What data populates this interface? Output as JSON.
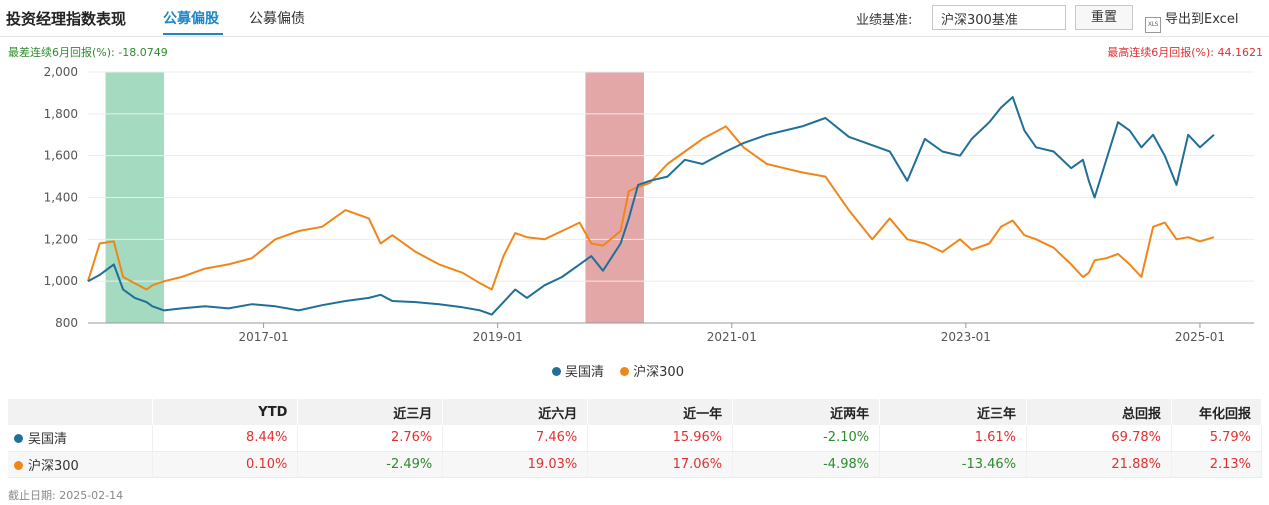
{
  "header": {
    "title": "投资经理指数表现",
    "tabs": [
      {
        "label": "公募偏股"
      },
      {
        "label": "公募偏债"
      }
    ],
    "benchmark_label": "业绩基准:",
    "benchmark_value": "沪深300基准",
    "reset_label": "重置",
    "export_label": "导出到Excel",
    "export_icon": "XLS"
  },
  "stats": {
    "worst_6m": "最差连续6月回报(%): -18.0749",
    "best_6m": "最高连续6月回报(%): 44.1621"
  },
  "colors": {
    "manager": "#1f6f99",
    "benchmark": "#f0861a",
    "worst_band": "#9fd9bd",
    "best_band": "#e3a2a2",
    "positive": "#e03030",
    "negative": "#2e8b2e"
  },
  "chart_data": {
    "type": "line",
    "ylim": [
      800,
      2000
    ],
    "y_ticks": [
      800,
      1000,
      1200,
      1400,
      1600,
      1800,
      2000
    ],
    "y_tick_labels": [
      "800",
      "1,000",
      "1,200",
      "1,400",
      "1,600",
      "1,800",
      "2,000"
    ],
    "x_ticks": [
      2017.0,
      2019.0,
      2021.0,
      2023.0,
      2025.0
    ],
    "x_tick_labels": [
      "2017-01",
      "2019-01",
      "2021-01",
      "2023-01",
      "2025-01"
    ],
    "xlim": [
      2015.5,
      2025.12
    ],
    "bands": [
      {
        "from": 2015.65,
        "to": 2016.15,
        "kind": "worst"
      },
      {
        "from": 2019.75,
        "to": 2020.25,
        "kind": "best"
      }
    ],
    "series": [
      {
        "name": "吴国清",
        "x": [
          2015.5,
          2015.6,
          2015.72,
          2015.8,
          2015.9,
          2016.0,
          2016.05,
          2016.15,
          2016.3,
          2016.5,
          2016.7,
          2016.9,
          2017.1,
          2017.3,
          2017.5,
          2017.7,
          2017.9,
          2018.0,
          2018.1,
          2018.3,
          2018.5,
          2018.7,
          2018.85,
          2018.95,
          2019.05,
          2019.15,
          2019.25,
          2019.4,
          2019.55,
          2019.7,
          2019.8,
          2019.9,
          2020.05,
          2020.12,
          2020.2,
          2020.3,
          2020.45,
          2020.6,
          2020.75,
          2020.95,
          2021.1,
          2021.3,
          2021.45,
          2021.6,
          2021.8,
          2022.0,
          2022.2,
          2022.35,
          2022.5,
          2022.65,
          2022.8,
          2022.95,
          2023.05,
          2023.2,
          2023.3,
          2023.4,
          2023.5,
          2023.6,
          2023.75,
          2023.9,
          2024.0,
          2024.05,
          2024.1,
          2024.2,
          2024.3,
          2024.4,
          2024.5,
          2024.6,
          2024.7,
          2024.8,
          2024.9,
          2025.0,
          2025.12
        ],
        "values": [
          1000,
          1030,
          1080,
          960,
          920,
          900,
          880,
          860,
          870,
          880,
          870,
          890,
          880,
          860,
          885,
          905,
          920,
          935,
          905,
          900,
          890,
          875,
          860,
          840,
          900,
          960,
          920,
          980,
          1020,
          1080,
          1120,
          1050,
          1180,
          1300,
          1460,
          1480,
          1500,
          1580,
          1560,
          1620,
          1660,
          1700,
          1720,
          1740,
          1780,
          1690,
          1650,
          1620,
          1480,
          1680,
          1620,
          1600,
          1680,
          1760,
          1830,
          1880,
          1720,
          1640,
          1620,
          1540,
          1580,
          1480,
          1400,
          1580,
          1760,
          1720,
          1640,
          1700,
          1600,
          1460,
          1700,
          1640,
          1700
        ]
      },
      {
        "name": "沪深300",
        "x": [
          2015.5,
          2015.6,
          2015.72,
          2015.8,
          2015.9,
          2016.0,
          2016.05,
          2016.15,
          2016.3,
          2016.5,
          2016.7,
          2016.9,
          2017.1,
          2017.3,
          2017.5,
          2017.7,
          2017.9,
          2018.0,
          2018.1,
          2018.3,
          2018.5,
          2018.7,
          2018.85,
          2018.95,
          2019.05,
          2019.15,
          2019.25,
          2019.4,
          2019.55,
          2019.7,
          2019.8,
          2019.9,
          2020.05,
          2020.12,
          2020.2,
          2020.3,
          2020.45,
          2020.6,
          2020.75,
          2020.95,
          2021.1,
          2021.3,
          2021.45,
          2021.6,
          2021.8,
          2022.0,
          2022.2,
          2022.35,
          2022.5,
          2022.65,
          2022.8,
          2022.95,
          2023.05,
          2023.2,
          2023.3,
          2023.4,
          2023.5,
          2023.6,
          2023.75,
          2023.9,
          2024.0,
          2024.05,
          2024.1,
          2024.2,
          2024.3,
          2024.4,
          2024.5,
          2024.6,
          2024.7,
          2024.8,
          2024.9,
          2025.0,
          2025.12
        ],
        "values": [
          1000,
          1180,
          1190,
          1020,
          990,
          960,
          980,
          1000,
          1020,
          1060,
          1080,
          1110,
          1200,
          1240,
          1260,
          1340,
          1300,
          1180,
          1220,
          1140,
          1080,
          1040,
          990,
          960,
          1120,
          1230,
          1210,
          1200,
          1240,
          1280,
          1180,
          1170,
          1240,
          1430,
          1450,
          1470,
          1560,
          1620,
          1680,
          1740,
          1640,
          1560,
          1540,
          1520,
          1500,
          1340,
          1200,
          1300,
          1200,
          1180,
          1140,
          1200,
          1150,
          1180,
          1260,
          1290,
          1220,
          1200,
          1160,
          1080,
          1020,
          1040,
          1100,
          1110,
          1130,
          1080,
          1020,
          1260,
          1280,
          1200,
          1210,
          1190,
          1210
        ]
      }
    ]
  },
  "table": {
    "columns": [
      "",
      "YTD",
      "近三月",
      "近六月",
      "近一年",
      "近两年",
      "近三年",
      "总回报",
      "年化回报"
    ],
    "rows": [
      {
        "name": "吴国清",
        "values": [
          "8.44%",
          "2.76%",
          "7.46%",
          "15.96%",
          "-2.10%",
          "1.61%",
          "69.78%",
          "5.79%"
        ]
      },
      {
        "name": "沪深300",
        "values": [
          "0.10%",
          "-2.49%",
          "19.03%",
          "17.06%",
          "-4.98%",
          "-13.46%",
          "21.88%",
          "2.13%"
        ]
      }
    ]
  },
  "footer": {
    "cutoff": "截止日期: 2025-02-14"
  }
}
